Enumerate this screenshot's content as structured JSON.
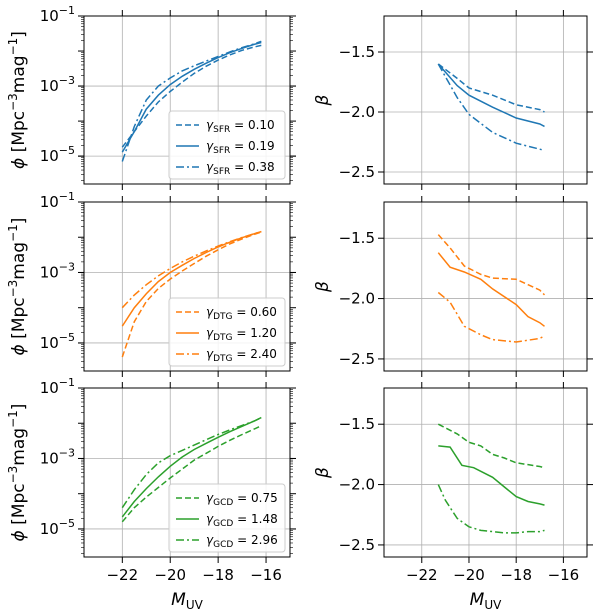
{
  "chart_data": [
    {
      "type": "line",
      "panel": "top-left",
      "quantity": "phi",
      "scale": "log",
      "ylim": [
        1.6e-06,
        0.1
      ],
      "xlim": [
        -23.6,
        -15.0
      ],
      "grid": true,
      "color": "#1f77b4",
      "legend": "bottom-right",
      "legend_sub": "SFR",
      "yticks": [
        {
          "v": 0.1,
          "label": "10",
          "exp": "−1"
        },
        {
          "v": 0.001,
          "label": "10",
          "exp": "−3"
        },
        {
          "v": 1e-05,
          "label": "10",
          "exp": "−5"
        }
      ],
      "xticks": [
        -22,
        -20,
        -18,
        -16
      ],
      "xticklabels": [
        "",
        "",
        "",
        ""
      ],
      "ylabel": "ϕ [Mpc⁻³mag⁻¹]",
      "xlabel": "",
      "series": [
        {
          "name": "γ_SFR = 0.10",
          "legend_value": "0.10",
          "style": "dashed",
          "x": [
            -22.0,
            -21.5,
            -21.0,
            -20.5,
            -20.0,
            -19.5,
            -19.0,
            -18.5,
            -18.0,
            -17.5,
            -17.0,
            -16.5,
            -16.2
          ],
          "y": [
            1.8e-05,
            5e-05,
            0.00014,
            0.00035,
            0.0007,
            0.0013,
            0.0023,
            0.0037,
            0.0055,
            0.0078,
            0.0105,
            0.013,
            0.0145
          ]
        },
        {
          "name": "γ_SFR = 0.19",
          "legend_value": "0.19",
          "style": "solid",
          "x": [
            -22.0,
            -21.5,
            -21.0,
            -20.5,
            -20.0,
            -19.5,
            -19.0,
            -18.5,
            -18.0,
            -17.5,
            -17.0,
            -16.5,
            -16.2
          ],
          "y": [
            1.3e-05,
            5e-05,
            0.00022,
            0.00055,
            0.0011,
            0.0019,
            0.003,
            0.0045,
            0.0065,
            0.009,
            0.012,
            0.0155,
            0.0175
          ]
        },
        {
          "name": "γ_SFR = 0.38",
          "legend_value": "0.38",
          "style": "dashdot",
          "x": [
            -22.0,
            -21.5,
            -21.0,
            -20.5,
            -20.0,
            -19.5,
            -19.0,
            -18.5,
            -18.0,
            -17.5,
            -17.0,
            -16.5,
            -16.2
          ],
          "y": [
            7e-06,
            7e-05,
            0.0004,
            0.001,
            0.0017,
            0.0027,
            0.0038,
            0.0052,
            0.007,
            0.0095,
            0.0125,
            0.016,
            0.019
          ]
        }
      ]
    },
    {
      "type": "line",
      "panel": "top-right",
      "quantity": "beta",
      "scale": "linear",
      "ylim": [
        -2.6,
        -1.2
      ],
      "xlim": [
        -23.6,
        -15.0
      ],
      "grid": true,
      "color": "#1f77b4",
      "yticks": [
        {
          "v": -1.5,
          "label": "−1.5"
        },
        {
          "v": -2.0,
          "label": "−2.0"
        },
        {
          "v": -2.5,
          "label": "−2.5"
        }
      ],
      "xticks": [
        -22,
        -20,
        -18,
        -16
      ],
      "xticklabels": [
        "",
        "",
        "",
        ""
      ],
      "ylabel": "β",
      "xlabel": "",
      "series": [
        {
          "name": "γ_SFR = 0.10",
          "style": "dashed",
          "x": [
            -21.3,
            -20.5,
            -20.0,
            -19.0,
            -18.0,
            -17.0,
            -16.8
          ],
          "y": [
            -1.6,
            -1.72,
            -1.8,
            -1.86,
            -1.94,
            -1.98,
            -2.0
          ]
        },
        {
          "name": "γ_SFR = 0.19",
          "style": "solid",
          "x": [
            -21.3,
            -20.5,
            -20.0,
            -19.0,
            -18.0,
            -17.0,
            -16.8
          ],
          "y": [
            -1.6,
            -1.78,
            -1.86,
            -1.96,
            -2.05,
            -2.1,
            -2.12
          ]
        },
        {
          "name": "γ_SFR = 0.38",
          "style": "dashdot",
          "x": [
            -21.3,
            -20.5,
            -20.0,
            -19.0,
            -18.0,
            -17.0,
            -16.8
          ],
          "y": [
            -1.6,
            -1.88,
            -2.02,
            -2.17,
            -2.26,
            -2.31,
            -2.32
          ]
        }
      ]
    },
    {
      "type": "line",
      "panel": "mid-left",
      "quantity": "phi",
      "scale": "log",
      "ylim": [
        1.6e-06,
        0.1
      ],
      "xlim": [
        -23.6,
        -15.0
      ],
      "grid": true,
      "color": "#ff7f0e",
      "legend": "bottom-right",
      "legend_sub": "DTG",
      "yticks": [
        {
          "v": 0.1,
          "label": "10",
          "exp": "−1"
        },
        {
          "v": 0.001,
          "label": "10",
          "exp": "−3"
        },
        {
          "v": 1e-05,
          "label": "10",
          "exp": "−5"
        }
      ],
      "xticks": [
        -22,
        -20,
        -18,
        -16
      ],
      "xticklabels": [
        "",
        "",
        "",
        ""
      ],
      "ylabel": "ϕ [Mpc⁻³mag⁻¹]",
      "xlabel": "",
      "series": [
        {
          "name": "γ_DTG = 0.60",
          "legend_value": "0.60",
          "style": "dashed",
          "x": [
            -22.0,
            -21.5,
            -21.0,
            -20.5,
            -20.0,
            -19.5,
            -19.0,
            -18.5,
            -18.0,
            -17.5,
            -17.0,
            -16.5,
            -16.2
          ],
          "y": [
            4e-06,
            4e-05,
            0.00015,
            0.00035,
            0.00065,
            0.0011,
            0.0018,
            0.0029,
            0.0044,
            0.0065,
            0.009,
            0.012,
            0.014
          ]
        },
        {
          "name": "γ_DTG = 1.20",
          "legend_value": "1.20",
          "style": "solid",
          "x": [
            -22.0,
            -21.5,
            -21.0,
            -20.5,
            -20.0,
            -19.5,
            -19.0,
            -18.5,
            -18.0,
            -17.5,
            -17.0,
            -16.5,
            -16.2
          ],
          "y": [
            3e-05,
            0.0001,
            0.00025,
            0.00055,
            0.001,
            0.0016,
            0.0025,
            0.0037,
            0.0053,
            0.0073,
            0.0097,
            0.0125,
            0.0145
          ]
        },
        {
          "name": "γ_DTG = 2.40",
          "legend_value": "2.40",
          "style": "dashdot",
          "x": [
            -22.0,
            -21.5,
            -21.0,
            -20.5,
            -20.0,
            -19.5,
            -19.0,
            -18.5,
            -18.0,
            -17.5,
            -17.0,
            -16.5,
            -16.2
          ],
          "y": [
            0.0001,
            0.00023,
            0.00045,
            0.0008,
            0.0013,
            0.002,
            0.0029,
            0.0041,
            0.0056,
            0.0075,
            0.0098,
            0.0125,
            0.0145
          ]
        }
      ]
    },
    {
      "type": "line",
      "panel": "mid-right",
      "quantity": "beta",
      "scale": "linear",
      "ylim": [
        -2.6,
        -1.2
      ],
      "xlim": [
        -23.6,
        -15.0
      ],
      "grid": true,
      "color": "#ff7f0e",
      "yticks": [
        {
          "v": -1.5,
          "label": "−1.5"
        },
        {
          "v": -2.0,
          "label": "−2.0"
        },
        {
          "v": -2.5,
          "label": "−2.5"
        }
      ],
      "xticks": [
        -22,
        -20,
        -18,
        -16
      ],
      "xticklabels": [
        "",
        "",
        "",
        ""
      ],
      "ylabel": "β",
      "xlabel": "",
      "series": [
        {
          "name": "γ_DTG = 0.60",
          "style": "dashed",
          "x": [
            -21.3,
            -20.8,
            -20.2,
            -19.5,
            -19.0,
            -18.0,
            -17.0,
            -16.8
          ],
          "y": [
            -1.47,
            -1.58,
            -1.73,
            -1.8,
            -1.83,
            -1.84,
            -1.93,
            -1.97
          ]
        },
        {
          "name": "γ_DTG = 1.20",
          "style": "solid",
          "x": [
            -21.3,
            -20.8,
            -20.2,
            -19.5,
            -19.0,
            -18.0,
            -17.5,
            -17.0,
            -16.8
          ],
          "y": [
            -1.62,
            -1.74,
            -1.78,
            -1.84,
            -1.92,
            -2.05,
            -2.15,
            -2.2,
            -2.23
          ]
        },
        {
          "name": "γ_DTG = 2.40",
          "style": "dashdot",
          "x": [
            -21.3,
            -20.8,
            -20.2,
            -19.5,
            -19.0,
            -18.0,
            -17.0,
            -16.8
          ],
          "y": [
            -1.95,
            -2.03,
            -2.23,
            -2.3,
            -2.34,
            -2.36,
            -2.33,
            -2.31
          ]
        }
      ]
    },
    {
      "type": "line",
      "panel": "bottom-left",
      "quantity": "phi",
      "scale": "log",
      "ylim": [
        1.6e-06,
        0.1
      ],
      "xlim": [
        -23.6,
        -15.0
      ],
      "grid": true,
      "color": "#2ca02c",
      "legend": "bottom-right",
      "legend_sub": "GCD",
      "yticks": [
        {
          "v": 0.1,
          "label": "10",
          "exp": "−1"
        },
        {
          "v": 0.001,
          "label": "10",
          "exp": "−3"
        },
        {
          "v": 1e-05,
          "label": "10",
          "exp": "−5"
        }
      ],
      "xticks": [
        -22,
        -20,
        -18,
        -16
      ],
      "xticklabels": [
        "−22",
        "−20",
        "−18",
        "−16"
      ],
      "ylabel": "ϕ [Mpc⁻³mag⁻¹]",
      "xlabel": "M_UV",
      "series": [
        {
          "name": "γ_GCD = 0.75",
          "legend_value": "0.75",
          "style": "dashed",
          "x": [
            -22.0,
            -21.5,
            -21.0,
            -20.5,
            -20.0,
            -19.5,
            -19.0,
            -18.5,
            -18.0,
            -17.5,
            -17.0,
            -16.5,
            -16.2
          ],
          "y": [
            1.6e-05,
            4e-05,
            8e-05,
            0.00015,
            0.00028,
            0.0005,
            0.0009,
            0.0014,
            0.0022,
            0.0033,
            0.0048,
            0.0068,
            0.0085
          ]
        },
        {
          "name": "γ_GCD = 1.48",
          "legend_value": "1.48",
          "style": "solid",
          "x": [
            -22.0,
            -21.5,
            -21.0,
            -20.5,
            -20.0,
            -19.5,
            -19.0,
            -18.5,
            -18.0,
            -17.5,
            -17.0,
            -16.5,
            -16.2
          ],
          "y": [
            2.2e-05,
            6e-05,
            0.00014,
            0.0003,
            0.0006,
            0.0011,
            0.0018,
            0.0027,
            0.004,
            0.0058,
            0.0082,
            0.0115,
            0.0145
          ]
        },
        {
          "name": "γ_GCD = 2.96",
          "legend_value": "2.96",
          "style": "dashdot",
          "x": [
            -22.0,
            -21.5,
            -21.0,
            -20.5,
            -20.0,
            -19.5,
            -19.0,
            -18.5,
            -18.0,
            -17.5,
            -17.0,
            -16.5,
            -16.2
          ],
          "y": [
            4e-05,
            0.00013,
            0.00035,
            0.00075,
            0.0012,
            0.0017,
            0.0024,
            0.0034,
            0.0048,
            0.0065,
            0.0087,
            0.0115,
            0.0145
          ]
        }
      ]
    },
    {
      "type": "line",
      "panel": "bottom-right",
      "quantity": "beta",
      "scale": "linear",
      "ylim": [
        -2.6,
        -1.2
      ],
      "xlim": [
        -23.6,
        -15.0
      ],
      "grid": true,
      "color": "#2ca02c",
      "yticks": [
        {
          "v": -1.5,
          "label": "−1.5"
        },
        {
          "v": -2.0,
          "label": "−2.0"
        },
        {
          "v": -2.5,
          "label": "−2.5"
        }
      ],
      "xticks": [
        -22,
        -20,
        -18,
        -16
      ],
      "xticklabels": [
        "−22",
        "−20",
        "−18",
        "−16"
      ],
      "ylabel": "β",
      "xlabel": "M_UV",
      "series": [
        {
          "name": "γ_GCD = 0.75",
          "style": "dashed",
          "x": [
            -21.3,
            -20.5,
            -20.0,
            -19.5,
            -19.0,
            -18.5,
            -18.0,
            -17.0,
            -16.8
          ],
          "y": [
            -1.5,
            -1.58,
            -1.65,
            -1.68,
            -1.75,
            -1.78,
            -1.82,
            -1.85,
            -1.86
          ]
        },
        {
          "name": "γ_GCD = 1.48",
          "style": "solid",
          "x": [
            -21.3,
            -20.8,
            -20.3,
            -19.8,
            -19.0,
            -18.5,
            -18.0,
            -17.5,
            -17.0,
            -16.8
          ],
          "y": [
            -1.68,
            -1.69,
            -1.84,
            -1.86,
            -1.94,
            -2.02,
            -2.1,
            -2.14,
            -2.16,
            -2.17
          ]
        },
        {
          "name": "γ_GCD = 2.96",
          "style": "dashdot",
          "x": [
            -21.3,
            -21.0,
            -20.5,
            -20.0,
            -19.5,
            -19.0,
            -18.5,
            -18.0,
            -17.5,
            -17.0,
            -16.8
          ],
          "y": [
            -2.0,
            -2.13,
            -2.28,
            -2.35,
            -2.38,
            -2.39,
            -2.4,
            -2.4,
            -2.39,
            -2.39,
            -2.38
          ]
        }
      ]
    }
  ]
}
